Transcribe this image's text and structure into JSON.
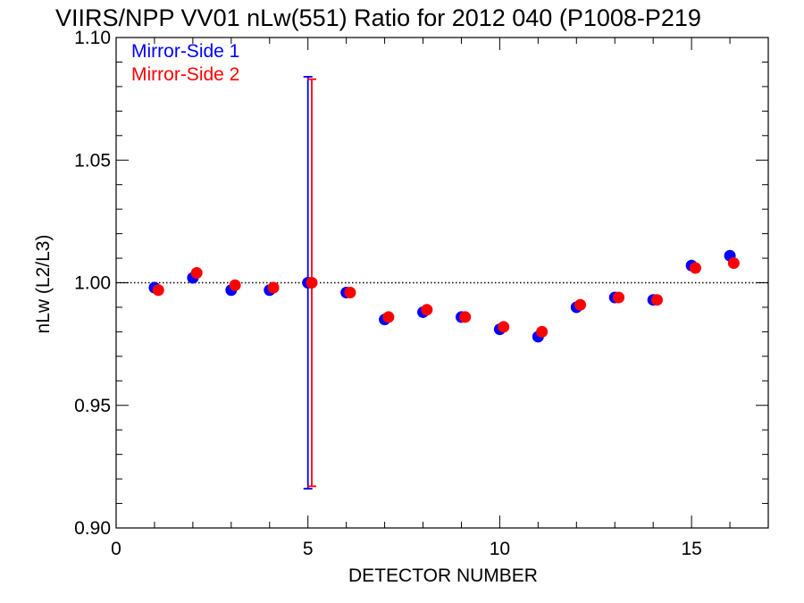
{
  "chart_data": {
    "type": "scatter",
    "title": "VIIRS/NPP VV01 nLw(551) Ratio for 2012 040 (P1008-P219",
    "xlabel": "DETECTOR NUMBER",
    "ylabel": "nLw (L2/L3)",
    "xlim": [
      0,
      17
    ],
    "ylim": [
      0.9,
      1.1
    ],
    "x_ticks": [
      "0",
      "5",
      "10",
      "15"
    ],
    "y_ticks": [
      "0.90",
      "0.95",
      "1.00",
      "1.05",
      "1.10"
    ],
    "reference_line": {
      "y": 1.0,
      "style": "dotted"
    },
    "legend_position": "top-left",
    "series": [
      {
        "name": "Mirror-Side 1",
        "color": "#0000ff",
        "x": [
          1,
          2,
          3,
          4,
          5,
          6,
          7,
          8,
          9,
          10,
          11,
          12,
          13,
          14,
          15,
          16
        ],
        "y": [
          0.998,
          1.002,
          0.997,
          0.997,
          1.0,
          0.996,
          0.985,
          0.988,
          0.986,
          0.981,
          0.978,
          0.99,
          0.994,
          0.993,
          1.007,
          1.011
        ],
        "error_bars": [
          {
            "x": 5,
            "low": 0.916,
            "high": 1.084
          }
        ]
      },
      {
        "name": "Mirror-Side 2",
        "color": "#ff0000",
        "x": [
          1.1,
          2.1,
          3.1,
          4.1,
          5.1,
          6.1,
          7.1,
          8.1,
          9.1,
          10.1,
          11.1,
          12.1,
          13.1,
          14.1,
          15.1,
          16.1
        ],
        "y": [
          0.997,
          1.004,
          0.999,
          0.998,
          1.0,
          0.996,
          0.986,
          0.989,
          0.986,
          0.982,
          0.98,
          0.991,
          0.994,
          0.993,
          1.006,
          1.008
        ],
        "error_bars": [
          {
            "x": 5.1,
            "low": 0.917,
            "high": 1.083
          }
        ]
      }
    ]
  }
}
